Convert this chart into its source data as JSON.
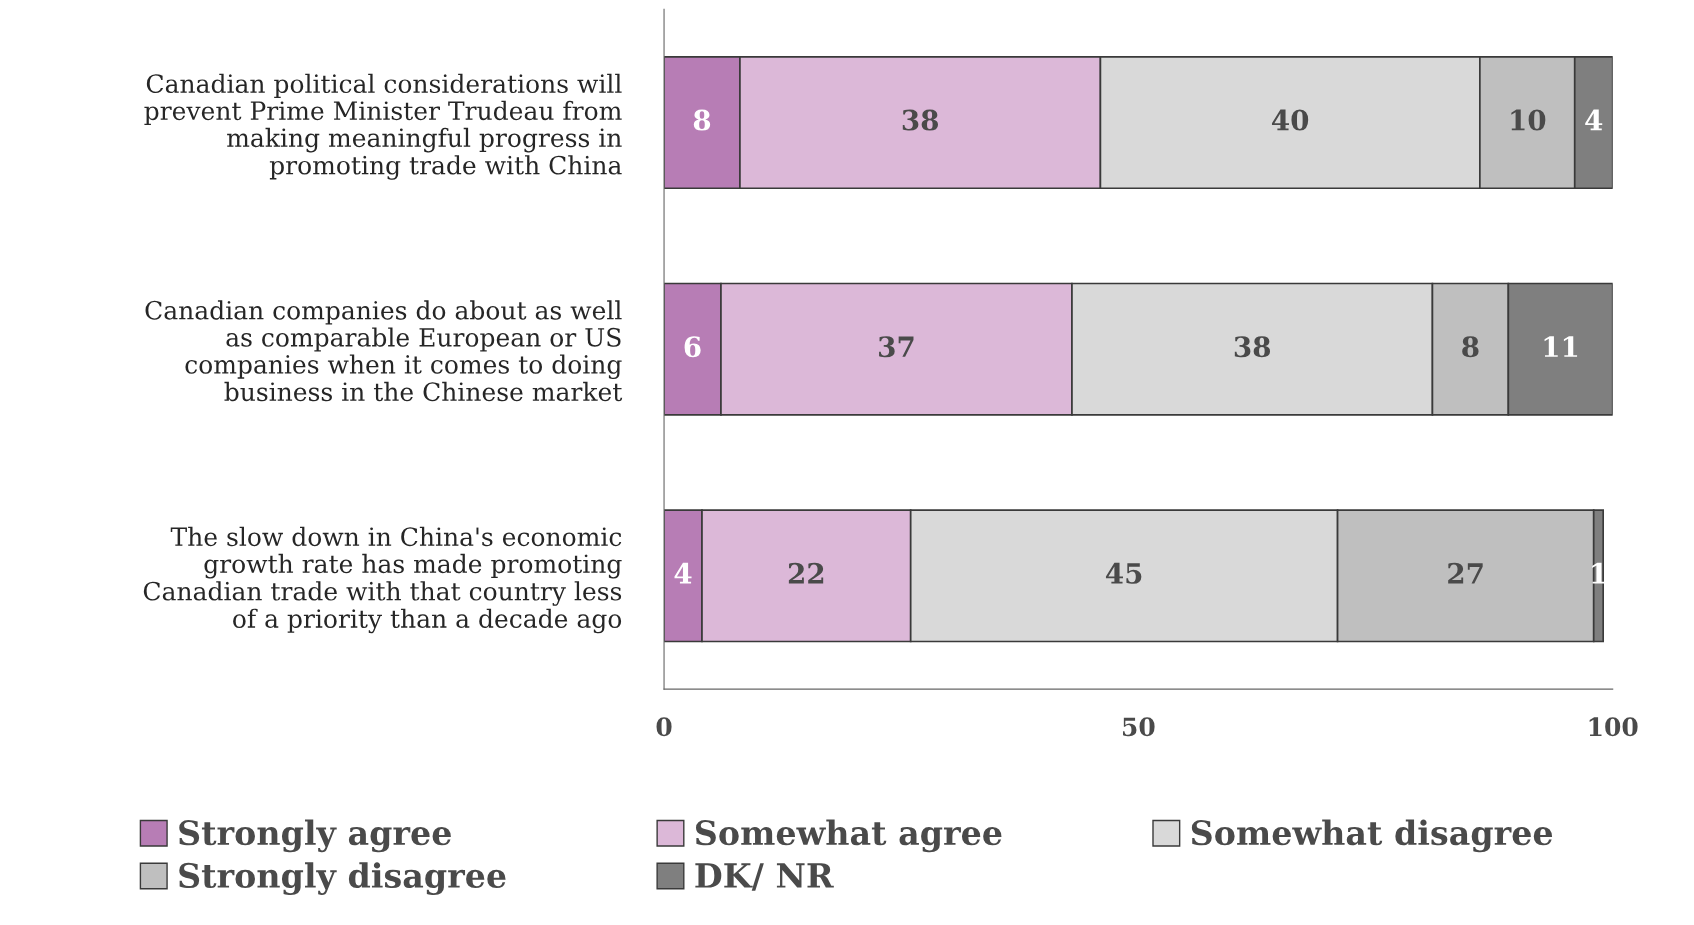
{
  "chart_data": {
    "type": "bar",
    "orientation": "horizontal",
    "stacked": true,
    "data_labels": true,
    "grid": false,
    "legend": "bottom",
    "categories": [
      "Canadian political considerations will\nprevent Prime Minister Trudeau from\nmaking meaningful progress in\npromoting trade with China",
      "Canadian companies do about as well\nas comparable European or US\ncompanies when it comes to doing\nbusiness in the Chinese market",
      "The slow down in China's economic\ngrowth rate has made promoting\nCanadian trade with that country less\nof a priority than a decade ago"
    ],
    "series": [
      {
        "name": "Strongly agree",
        "color": "#b77db5",
        "values": [
          8,
          6,
          4
        ]
      },
      {
        "name": "Somewhat agree",
        "color": "#dcb8d8",
        "values": [
          38,
          37,
          22
        ]
      },
      {
        "name": "Somewhat disagree",
        "color": "#d9d9d9",
        "values": [
          40,
          38,
          45
        ]
      },
      {
        "name": "Strongly disagree",
        "color": "#bfbfbf",
        "values": [
          10,
          8,
          27
        ]
      },
      {
        "name": "DK/ NR",
        "color": "#7f7f7f",
        "values": [
          4,
          11,
          1
        ]
      }
    ],
    "xlim": [
      0,
      100
    ],
    "xticks": [
      0,
      50,
      100
    ]
  }
}
